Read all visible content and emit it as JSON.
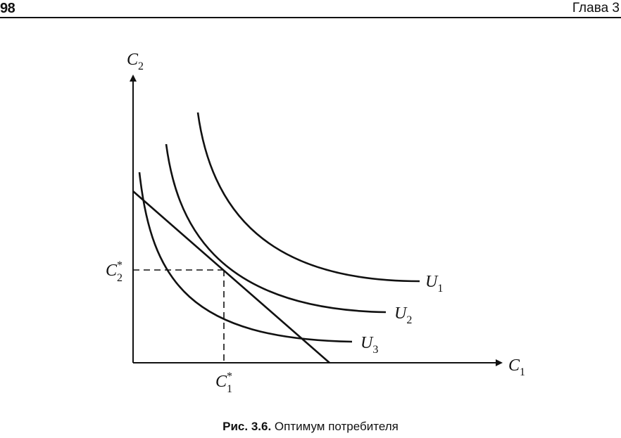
{
  "header": {
    "page_number": "98",
    "chapter": "Глава 3"
  },
  "figure": {
    "axes": {
      "y_label": {
        "base": "C",
        "sub": "2"
      },
      "x_label": {
        "base": "C",
        "sub": "1"
      }
    },
    "optimum": {
      "x_label": {
        "base": "C",
        "sup": "*",
        "sub": "1"
      },
      "y_label": {
        "base": "C",
        "sup": "*",
        "sub": "2"
      }
    },
    "curves": [
      {
        "base": "U",
        "sub": "1"
      },
      {
        "base": "U",
        "sub": "2"
      },
      {
        "base": "U",
        "sub": "3"
      }
    ]
  },
  "caption": {
    "lead": "Рис. 3.6.",
    "text": "Оптимум потребителя"
  }
}
